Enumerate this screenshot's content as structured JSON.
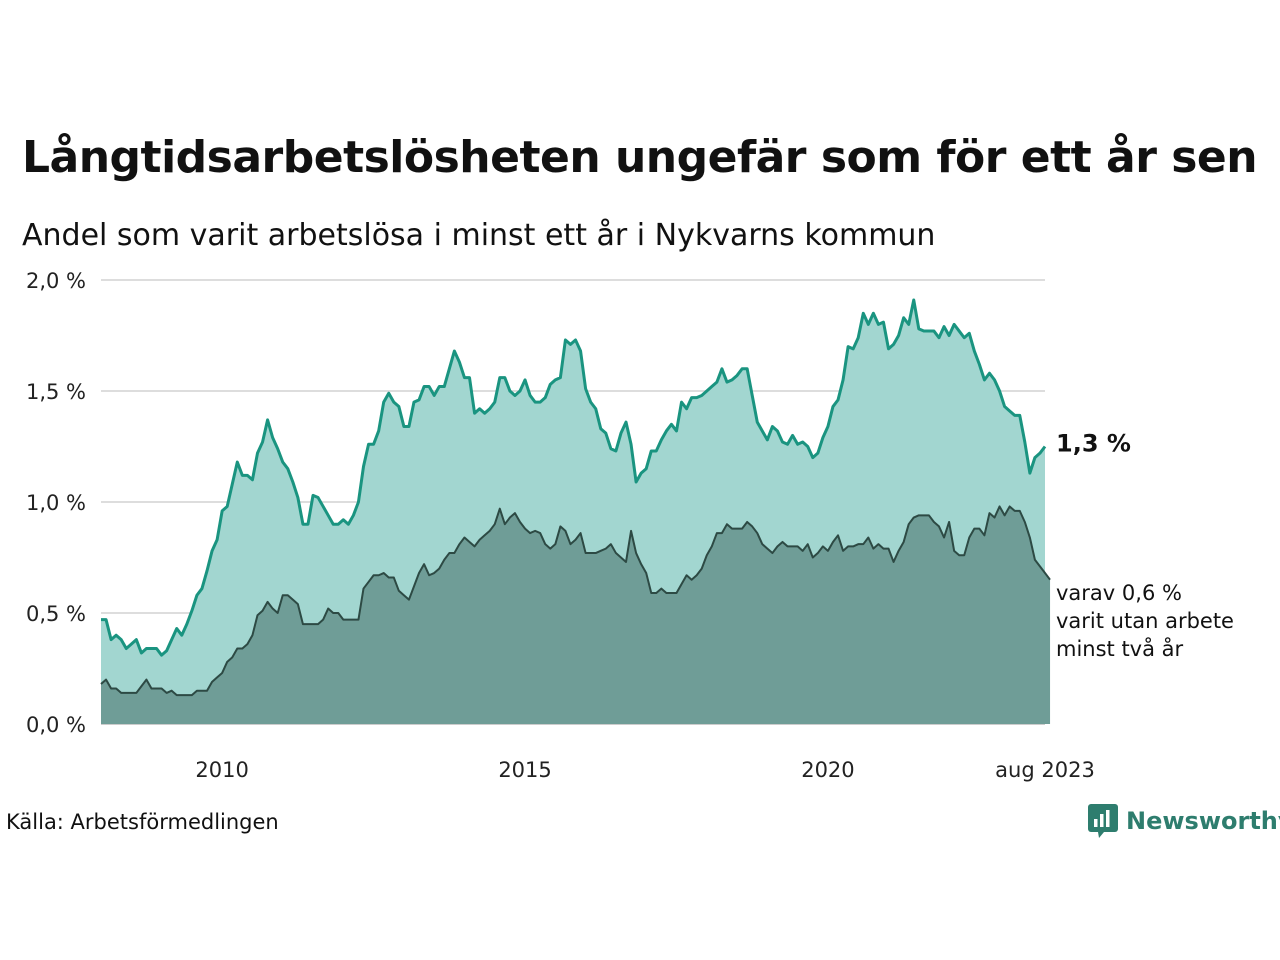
{
  "title": "Långtidsarbetslösheten ungefär som för ett år sen",
  "subtitle": "Andel som varit arbetslösa i minst ett år i Nykvarns kommun",
  "source": "Källa: Arbetsförmedlingen",
  "brand": {
    "name": "Newsworthy",
    "icon": "newsworthy-logo-icon"
  },
  "colors": {
    "line_total": "#1a9480",
    "area_total": "#a2d6d0",
    "line_long": "#2d4a44",
    "area_long": "#6f9d97",
    "grid": "#dddddd"
  },
  "end_label_total": "1,3 %",
  "end_label_long": [
    "varav 0,6 %",
    "varit utan arbete",
    "minst två år"
  ],
  "chart_data": {
    "type": "area",
    "x_start": "2008-01",
    "x_end": "2023-08",
    "x_frequency": "monthly",
    "ylim": [
      0,
      2.0
    ],
    "yticks": [
      "0,0 %",
      "0,5 %",
      "1,0 %",
      "1,5 %",
      "2,0 %"
    ],
    "ytick_values": [
      0,
      0.5,
      1.0,
      1.5,
      2.0
    ],
    "xticks": [
      "2010",
      "2015",
      "2020",
      "aug 2023"
    ],
    "xtick_dates": [
      "2010-01",
      "2015-01",
      "2020-01",
      "2023-08"
    ],
    "grid": true,
    "series": [
      {
        "key": "total",
        "values": [
          0.47,
          0.47,
          0.38,
          0.4,
          0.38,
          0.34,
          0.36,
          0.38,
          0.32,
          0.34,
          0.34,
          0.34,
          0.31,
          0.33,
          0.38,
          0.43,
          0.4,
          0.45,
          0.51,
          0.58,
          0.61,
          0.69,
          0.78,
          0.83,
          0.96,
          0.98,
          1.08,
          1.18,
          1.12,
          1.12,
          1.1,
          1.22,
          1.27,
          1.37,
          1.29,
          1.24,
          1.18,
          1.15,
          1.09,
          1.02,
          0.9,
          0.9,
          1.03,
          1.02,
          0.98,
          0.94,
          0.9,
          0.9,
          0.92,
          0.9,
          0.94,
          1.0,
          1.16,
          1.26,
          1.26,
          1.32,
          1.45,
          1.49,
          1.45,
          1.43,
          1.34,
          1.34,
          1.45,
          1.46,
          1.52,
          1.52,
          1.48,
          1.52,
          1.52,
          1.6,
          1.68,
          1.63,
          1.56,
          1.56,
          1.4,
          1.42,
          1.4,
          1.42,
          1.45,
          1.56,
          1.56,
          1.5,
          1.48,
          1.5,
          1.55,
          1.48,
          1.45,
          1.45,
          1.47,
          1.53,
          1.55,
          1.56,
          1.73,
          1.71,
          1.73,
          1.68,
          1.51,
          1.45,
          1.42,
          1.33,
          1.31,
          1.24,
          1.23,
          1.31,
          1.36,
          1.26,
          1.09,
          1.13,
          1.15,
          1.23,
          1.23,
          1.28,
          1.32,
          1.35,
          1.32,
          1.45,
          1.42,
          1.47,
          1.47,
          1.48,
          1.5,
          1.52,
          1.54,
          1.6,
          1.54,
          1.55,
          1.57,
          1.6,
          1.6,
          1.48,
          1.36,
          1.32,
          1.28,
          1.34,
          1.32,
          1.27,
          1.26,
          1.3,
          1.26,
          1.27,
          1.25,
          1.2,
          1.22,
          1.29,
          1.34,
          1.43,
          1.46,
          1.55,
          1.7,
          1.69,
          1.74,
          1.85,
          1.8,
          1.85,
          1.8,
          1.81,
          1.69,
          1.71,
          1.75,
          1.83,
          1.8,
          1.91,
          1.78,
          1.77,
          1.77,
          1.77,
          1.74,
          1.79,
          1.75,
          1.8,
          1.77,
          1.74,
          1.76,
          1.68,
          1.62,
          1.55,
          1.58,
          1.55,
          1.5,
          1.43,
          1.41,
          1.39,
          1.39,
          1.27,
          1.13,
          1.2,
          1.22,
          1.25
        ]
      },
      {
        "key": "long",
        "values": [
          0.18,
          0.2,
          0.16,
          0.16,
          0.14,
          0.14,
          0.14,
          0.14,
          0.17,
          0.2,
          0.16,
          0.16,
          0.16,
          0.14,
          0.15,
          0.13,
          0.13,
          0.13,
          0.13,
          0.15,
          0.15,
          0.15,
          0.19,
          0.21,
          0.23,
          0.28,
          0.3,
          0.34,
          0.34,
          0.36,
          0.4,
          0.49,
          0.51,
          0.55,
          0.52,
          0.5,
          0.58,
          0.58,
          0.56,
          0.54,
          0.45,
          0.45,
          0.45,
          0.45,
          0.47,
          0.52,
          0.5,
          0.5,
          0.47,
          0.47,
          0.47,
          0.47,
          0.61,
          0.64,
          0.67,
          0.67,
          0.68,
          0.66,
          0.66,
          0.6,
          0.58,
          0.56,
          0.62,
          0.68,
          0.72,
          0.67,
          0.68,
          0.7,
          0.74,
          0.77,
          0.77,
          0.81,
          0.84,
          0.82,
          0.8,
          0.83,
          0.85,
          0.87,
          0.9,
          0.97,
          0.9,
          0.93,
          0.95,
          0.91,
          0.88,
          0.86,
          0.87,
          0.86,
          0.81,
          0.79,
          0.81,
          0.89,
          0.87,
          0.81,
          0.83,
          0.86,
          0.77,
          0.77,
          0.77,
          0.78,
          0.79,
          0.81,
          0.77,
          0.75,
          0.73,
          0.87,
          0.77,
          0.72,
          0.68,
          0.59,
          0.59,
          0.61,
          0.59,
          0.59,
          0.59,
          0.63,
          0.67,
          0.65,
          0.67,
          0.7,
          0.76,
          0.8,
          0.86,
          0.86,
          0.9,
          0.88,
          0.88,
          0.88,
          0.91,
          0.89,
          0.86,
          0.81,
          0.79,
          0.77,
          0.8,
          0.82,
          0.8,
          0.8,
          0.8,
          0.78,
          0.81,
          0.75,
          0.77,
          0.8,
          0.78,
          0.82,
          0.85,
          0.78,
          0.8,
          0.8,
          0.81,
          0.81,
          0.84,
          0.79,
          0.81,
          0.79,
          0.79,
          0.73,
          0.78,
          0.82,
          0.9,
          0.93,
          0.94,
          0.94,
          0.94,
          0.91,
          0.89,
          0.84,
          0.91,
          0.78,
          0.76,
          0.76,
          0.84,
          0.88,
          0.88,
          0.85,
          0.95,
          0.93,
          0.98,
          0.94,
          0.98,
          0.96,
          0.96,
          0.91,
          0.84,
          0.74,
          0.71,
          0.68,
          0.65
        ]
      }
    ]
  }
}
